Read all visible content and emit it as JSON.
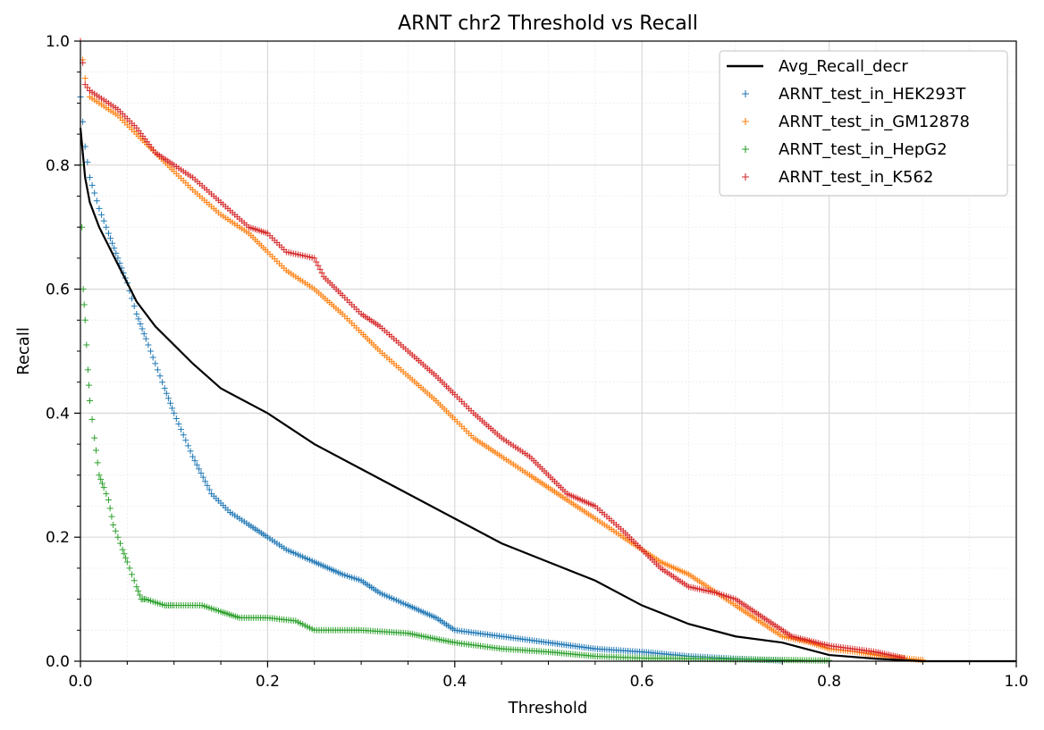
{
  "chart_data": {
    "type": "scatter",
    "title": "ARNT chr2 Threshold vs Recall",
    "xlabel": "Threshold",
    "ylabel": "Recall",
    "xlim": [
      0,
      1
    ],
    "ylim": [
      0,
      1
    ],
    "grid": true,
    "minor_grid": true,
    "x_ticks": [
      0.0,
      0.2,
      0.4,
      0.6,
      0.8,
      1.0
    ],
    "y_ticks": [
      0.0,
      0.2,
      0.4,
      0.6,
      0.8,
      1.0
    ],
    "x_tick_labels": [
      "0.0",
      "0.2",
      "0.4",
      "0.6",
      "0.8",
      "1.0"
    ],
    "y_tick_labels": [
      "0.0",
      "0.2",
      "0.4",
      "0.6",
      "0.8",
      "1.0"
    ],
    "legend_position": "top-right",
    "legend": [
      {
        "label": "Avg_Recall_decr",
        "kind": "line",
        "color": "#000000"
      },
      {
        "label": "ARNT_test_in_HEK293T",
        "kind": "marker",
        "color": "#1f77b4"
      },
      {
        "label": "ARNT_test_in_GM12878",
        "kind": "marker",
        "color": "#ff7f0e"
      },
      {
        "label": "ARNT_test_in_HepG2",
        "kind": "marker",
        "color": "#2ca02c"
      },
      {
        "label": "ARNT_test_in_K562",
        "kind": "marker",
        "color": "#d62728"
      }
    ],
    "series": [
      {
        "name": "Avg_Recall_decr",
        "kind": "line",
        "color": "#000000",
        "x": [
          0,
          0.005,
          0.01,
          0.02,
          0.03,
          0.04,
          0.05,
          0.06,
          0.07,
          0.08,
          0.1,
          0.12,
          0.15,
          0.2,
          0.25,
          0.3,
          0.35,
          0.4,
          0.45,
          0.5,
          0.55,
          0.6,
          0.65,
          0.7,
          0.75,
          0.8,
          0.85,
          0.9,
          1.0
        ],
        "y": [
          0.86,
          0.78,
          0.74,
          0.7,
          0.67,
          0.64,
          0.61,
          0.58,
          0.56,
          0.54,
          0.51,
          0.48,
          0.44,
          0.4,
          0.35,
          0.31,
          0.27,
          0.23,
          0.19,
          0.16,
          0.13,
          0.09,
          0.06,
          0.04,
          0.03,
          0.01,
          0.004,
          0.0,
          0.0
        ]
      },
      {
        "name": "ARNT_test_in_HEK293T",
        "kind": "marker",
        "color": "#1f77b4",
        "x": [
          0,
          0.005,
          0.01,
          0.02,
          0.03,
          0.04,
          0.05,
          0.06,
          0.07,
          0.08,
          0.09,
          0.1,
          0.12,
          0.14,
          0.16,
          0.18,
          0.2,
          0.22,
          0.25,
          0.28,
          0.3,
          0.32,
          0.35,
          0.38,
          0.4,
          0.45,
          0.5,
          0.55,
          0.6,
          0.65,
          0.7,
          0.75
        ],
        "y": [
          0.91,
          0.83,
          0.78,
          0.73,
          0.69,
          0.65,
          0.61,
          0.56,
          0.52,
          0.48,
          0.44,
          0.4,
          0.33,
          0.27,
          0.24,
          0.22,
          0.2,
          0.18,
          0.16,
          0.14,
          0.13,
          0.11,
          0.09,
          0.07,
          0.05,
          0.04,
          0.03,
          0.02,
          0.015,
          0.008,
          0.004,
          0.001
        ]
      },
      {
        "name": "ARNT_test_in_GM12878",
        "kind": "marker",
        "color": "#ff7f0e",
        "x": [
          0,
          0.005,
          0.01,
          0.02,
          0.04,
          0.06,
          0.08,
          0.1,
          0.12,
          0.15,
          0.18,
          0.2,
          0.22,
          0.25,
          0.28,
          0.3,
          0.32,
          0.35,
          0.38,
          0.4,
          0.42,
          0.45,
          0.48,
          0.5,
          0.52,
          0.55,
          0.58,
          0.6,
          0.62,
          0.65,
          0.68,
          0.7,
          0.72,
          0.75,
          0.78,
          0.8,
          0.83,
          0.86,
          0.9
        ],
        "y": [
          1.0,
          0.94,
          0.91,
          0.9,
          0.88,
          0.85,
          0.82,
          0.79,
          0.76,
          0.72,
          0.69,
          0.66,
          0.63,
          0.6,
          0.56,
          0.53,
          0.5,
          0.46,
          0.42,
          0.39,
          0.36,
          0.33,
          0.3,
          0.28,
          0.26,
          0.23,
          0.2,
          0.18,
          0.16,
          0.14,
          0.11,
          0.09,
          0.07,
          0.04,
          0.03,
          0.02,
          0.015,
          0.007,
          0.002
        ]
      },
      {
        "name": "ARNT_test_in_HepG2",
        "kind": "marker",
        "color": "#2ca02c",
        "x": [
          0,
          0.003,
          0.005,
          0.008,
          0.01,
          0.015,
          0.02,
          0.025,
          0.03,
          0.035,
          0.04,
          0.045,
          0.05,
          0.055,
          0.06,
          0.065,
          0.07,
          0.08,
          0.09,
          0.1,
          0.13,
          0.15,
          0.17,
          0.2,
          0.23,
          0.25,
          0.3,
          0.35,
          0.4,
          0.45,
          0.5,
          0.55,
          0.6,
          0.65,
          0.7,
          0.75,
          0.8
        ],
        "y": [
          0.8,
          0.6,
          0.55,
          0.47,
          0.42,
          0.36,
          0.3,
          0.28,
          0.26,
          0.22,
          0.2,
          0.18,
          0.16,
          0.14,
          0.12,
          0.1,
          0.1,
          0.095,
          0.09,
          0.09,
          0.09,
          0.08,
          0.07,
          0.07,
          0.065,
          0.05,
          0.05,
          0.045,
          0.03,
          0.02,
          0.015,
          0.008,
          0.005,
          0.004,
          0.003,
          0.002,
          0.001
        ]
      },
      {
        "name": "ARNT_test_in_K562",
        "kind": "marker",
        "color": "#d62728",
        "x": [
          0,
          0.005,
          0.01,
          0.02,
          0.04,
          0.06,
          0.08,
          0.1,
          0.12,
          0.15,
          0.18,
          0.2,
          0.22,
          0.25,
          0.26,
          0.28,
          0.3,
          0.32,
          0.35,
          0.38,
          0.4,
          0.42,
          0.45,
          0.48,
          0.5,
          0.52,
          0.55,
          0.58,
          0.6,
          0.62,
          0.65,
          0.68,
          0.7,
          0.72,
          0.74,
          0.76,
          0.8,
          0.85,
          0.88
        ],
        "y": [
          1.0,
          0.93,
          0.92,
          0.91,
          0.89,
          0.86,
          0.82,
          0.8,
          0.78,
          0.74,
          0.7,
          0.69,
          0.66,
          0.65,
          0.62,
          0.59,
          0.56,
          0.54,
          0.5,
          0.46,
          0.43,
          0.4,
          0.36,
          0.33,
          0.3,
          0.27,
          0.25,
          0.21,
          0.18,
          0.15,
          0.12,
          0.11,
          0.1,
          0.08,
          0.06,
          0.04,
          0.025,
          0.015,
          0.005
        ]
      }
    ]
  }
}
